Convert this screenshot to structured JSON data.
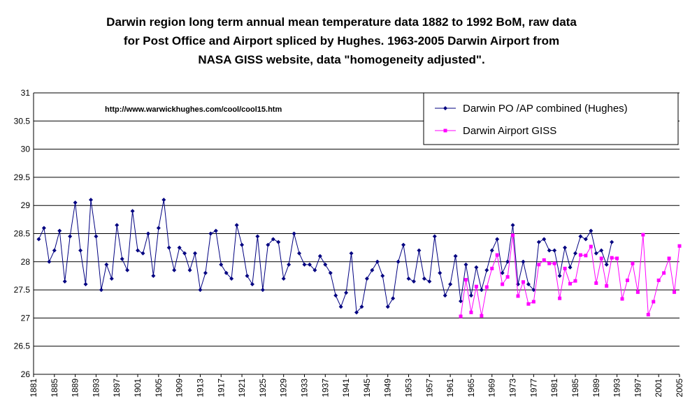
{
  "title_lines": [
    "Darwin region long term annual mean temperature data 1882 to 1992 BoM, raw data",
    "for Post Office and Airport spliced by Hughes.  1963-2005 Darwin Airport from",
    "NASA GISS website, data \"homogeneity adjusted\"."
  ],
  "annotation": "http://www.warwickhughes.com/cool/cool15.htm",
  "colors": {
    "series_hughes": "#000080",
    "series_giss": "#ff00ff",
    "grid": "#000000"
  },
  "chart_data": {
    "type": "line",
    "title": "Darwin region long term annual mean temperature data 1882 to 1992 BoM, raw data for Post Office and Airport spliced by Hughes.  1963-2005 Darwin Airport from NASA GISS website, data \"homogeneity adjusted\".",
    "xlabel": "",
    "ylabel": "",
    "xlim": [
      1881,
      2005
    ],
    "ylim": [
      26,
      31
    ],
    "y_ticks": [
      "26",
      "26.5",
      "27",
      "27.5",
      "28",
      "28.5",
      "29",
      "29.5",
      "30",
      "30.5",
      "31"
    ],
    "x_ticks": [
      "1881",
      "1885",
      "1889",
      "1893",
      "1897",
      "1901",
      "1905",
      "1909",
      "1913",
      "1917",
      "1921",
      "1925",
      "1929",
      "1933",
      "1937",
      "1941",
      "1945",
      "1949",
      "1953",
      "1957",
      "1961",
      "1965",
      "1969",
      "1973",
      "1977",
      "1981",
      "1985",
      "1989",
      "1993",
      "1997",
      "2001",
      "2005"
    ],
    "grid": true,
    "legend_position": "top-right",
    "series": [
      {
        "name": "Darwin PO /AP combined (Hughes)",
        "marker": "diamond",
        "x_start": 1882,
        "values": [
          28.4,
          28.6,
          28.0,
          28.2,
          28.55,
          27.65,
          28.45,
          29.05,
          28.2,
          27.6,
          29.1,
          28.45,
          27.5,
          27.95,
          27.7,
          28.65,
          28.05,
          27.85,
          28.9,
          28.2,
          28.15,
          28.5,
          27.75,
          28.6,
          29.1,
          28.25,
          27.85,
          28.25,
          28.15,
          27.85,
          28.15,
          27.5,
          27.8,
          28.5,
          28.55,
          27.95,
          27.8,
          27.7,
          28.65,
          28.3,
          27.75,
          27.6,
          28.45,
          27.5,
          28.3,
          28.4,
          28.35,
          27.7,
          27.95,
          28.5,
          28.15,
          27.95,
          27.95,
          27.85,
          28.1,
          27.95,
          27.8,
          27.4,
          27.2,
          27.45,
          28.15,
          27.1,
          27.2,
          27.7,
          27.85,
          28.0,
          27.75,
          27.2,
          27.35,
          28.0,
          28.3,
          27.7,
          27.65,
          28.2,
          27.7,
          27.65,
          28.45,
          27.8,
          27.4,
          27.6,
          28.1,
          27.3,
          27.95,
          27.4,
          27.9,
          27.5,
          27.85,
          28.2,
          28.4,
          27.8,
          28.0,
          28.65,
          27.6,
          28.0,
          27.6,
          27.5,
          28.35,
          28.4,
          28.2,
          28.2,
          27.75,
          28.25,
          27.9,
          28.15,
          28.45,
          28.4,
          28.55,
          28.15,
          28.2,
          27.95,
          28.35
        ]
      },
      {
        "name": "Darwin Airport GISS",
        "marker": "square",
        "x_start": 1963,
        "values": [
          27.03,
          27.68,
          27.1,
          27.56,
          27.04,
          27.55,
          27.88,
          28.12,
          27.6,
          27.73,
          28.47,
          27.39,
          27.64,
          27.25,
          27.29,
          27.95,
          28.03,
          27.97,
          27.97,
          27.35,
          27.88,
          27.61,
          27.66,
          28.12,
          28.11,
          28.27,
          27.62,
          28.06,
          27.57,
          28.07,
          28.06,
          27.34,
          27.67,
          27.97,
          27.46,
          28.48,
          27.06,
          27.29,
          27.67,
          27.8,
          28.06,
          27.46,
          28.28
        ]
      }
    ]
  }
}
